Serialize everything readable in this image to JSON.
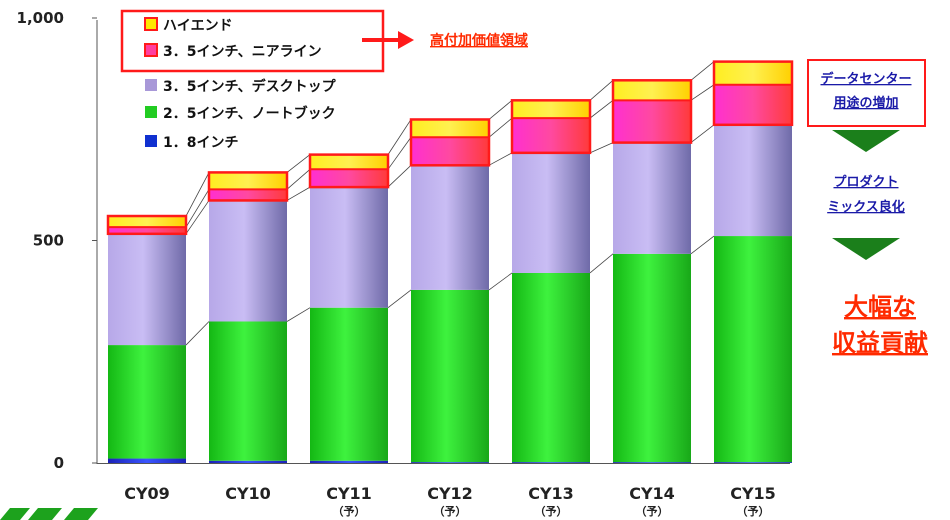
{
  "chart_data": {
    "type": "bar",
    "stacked": true,
    "categories": [
      "CY09",
      "CY10",
      "CY11",
      "CY12",
      "CY13",
      "CY14",
      "CY15"
    ],
    "category_notes": [
      "",
      "",
      "（予）",
      "（予）",
      "（予）",
      "（予）",
      "（予）"
    ],
    "ylim": [
      0,
      1000
    ],
    "yticks": [
      0,
      500,
      "1,000"
    ],
    "series": [
      {
        "name": "1．8インチ",
        "color": "#1030d0",
        "values": [
          10,
          5,
          5,
          2,
          2,
          2,
          2
        ]
      },
      {
        "name": "2．5インチ、ノートブック",
        "color": "#22cc22",
        "values": [
          255,
          313,
          344,
          387,
          425,
          468,
          508
        ]
      },
      {
        "name": "3．5インチ、デスクトップ",
        "color": "#a898d8",
        "values": [
          250,
          272,
          271,
          280,
          270,
          250,
          250
        ]
      },
      {
        "name": "3．5インチ、ニアライン",
        "color": "#ff3fa0",
        "values": [
          15,
          25,
          40,
          63,
          78,
          95,
          90
        ]
      },
      {
        "name": "ハイエンド",
        "color": "#ffe800",
        "values": [
          25,
          38,
          33,
          40,
          40,
          45,
          52
        ]
      }
    ],
    "legend_position": "top-left"
  },
  "annotations": {
    "high_value": "高付加価値領域",
    "datacenter": [
      "データセンター",
      "用途の増加"
    ],
    "product_mix": [
      "プロダクト",
      "ミックス良化"
    ],
    "contribution": [
      "大幅な",
      "収益貢献"
    ]
  },
  "colors": {
    "highlight_red": "#ff1a1a",
    "arrow_green": "#1b7f1b",
    "note_blue": "#1a1aa8"
  }
}
